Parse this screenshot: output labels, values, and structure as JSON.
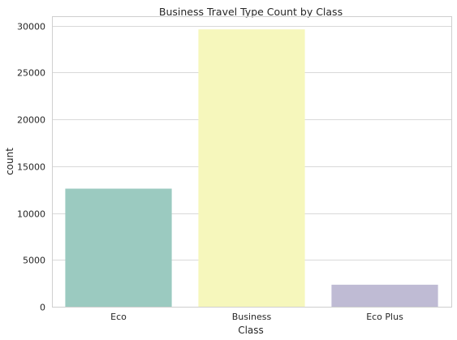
{
  "chart_data": {
    "type": "bar",
    "title": "Business Travel Type Count by Class",
    "xlabel": "Class",
    "ylabel": "count",
    "categories": [
      "Eco",
      "Business",
      "Eco Plus"
    ],
    "values": [
      12600,
      29600,
      2350
    ],
    "ylim": [
      0,
      31000
    ],
    "yticks": [
      0,
      5000,
      10000,
      15000,
      20000,
      25000,
      30000
    ],
    "ytick_labels": [
      "0",
      "5000",
      "10000",
      "15000",
      "20000",
      "25000",
      "30000"
    ],
    "colors": [
      "#9bcac0",
      "#f6f7bc",
      "#bfbbd4"
    ],
    "grid": true,
    "legend": "none"
  }
}
